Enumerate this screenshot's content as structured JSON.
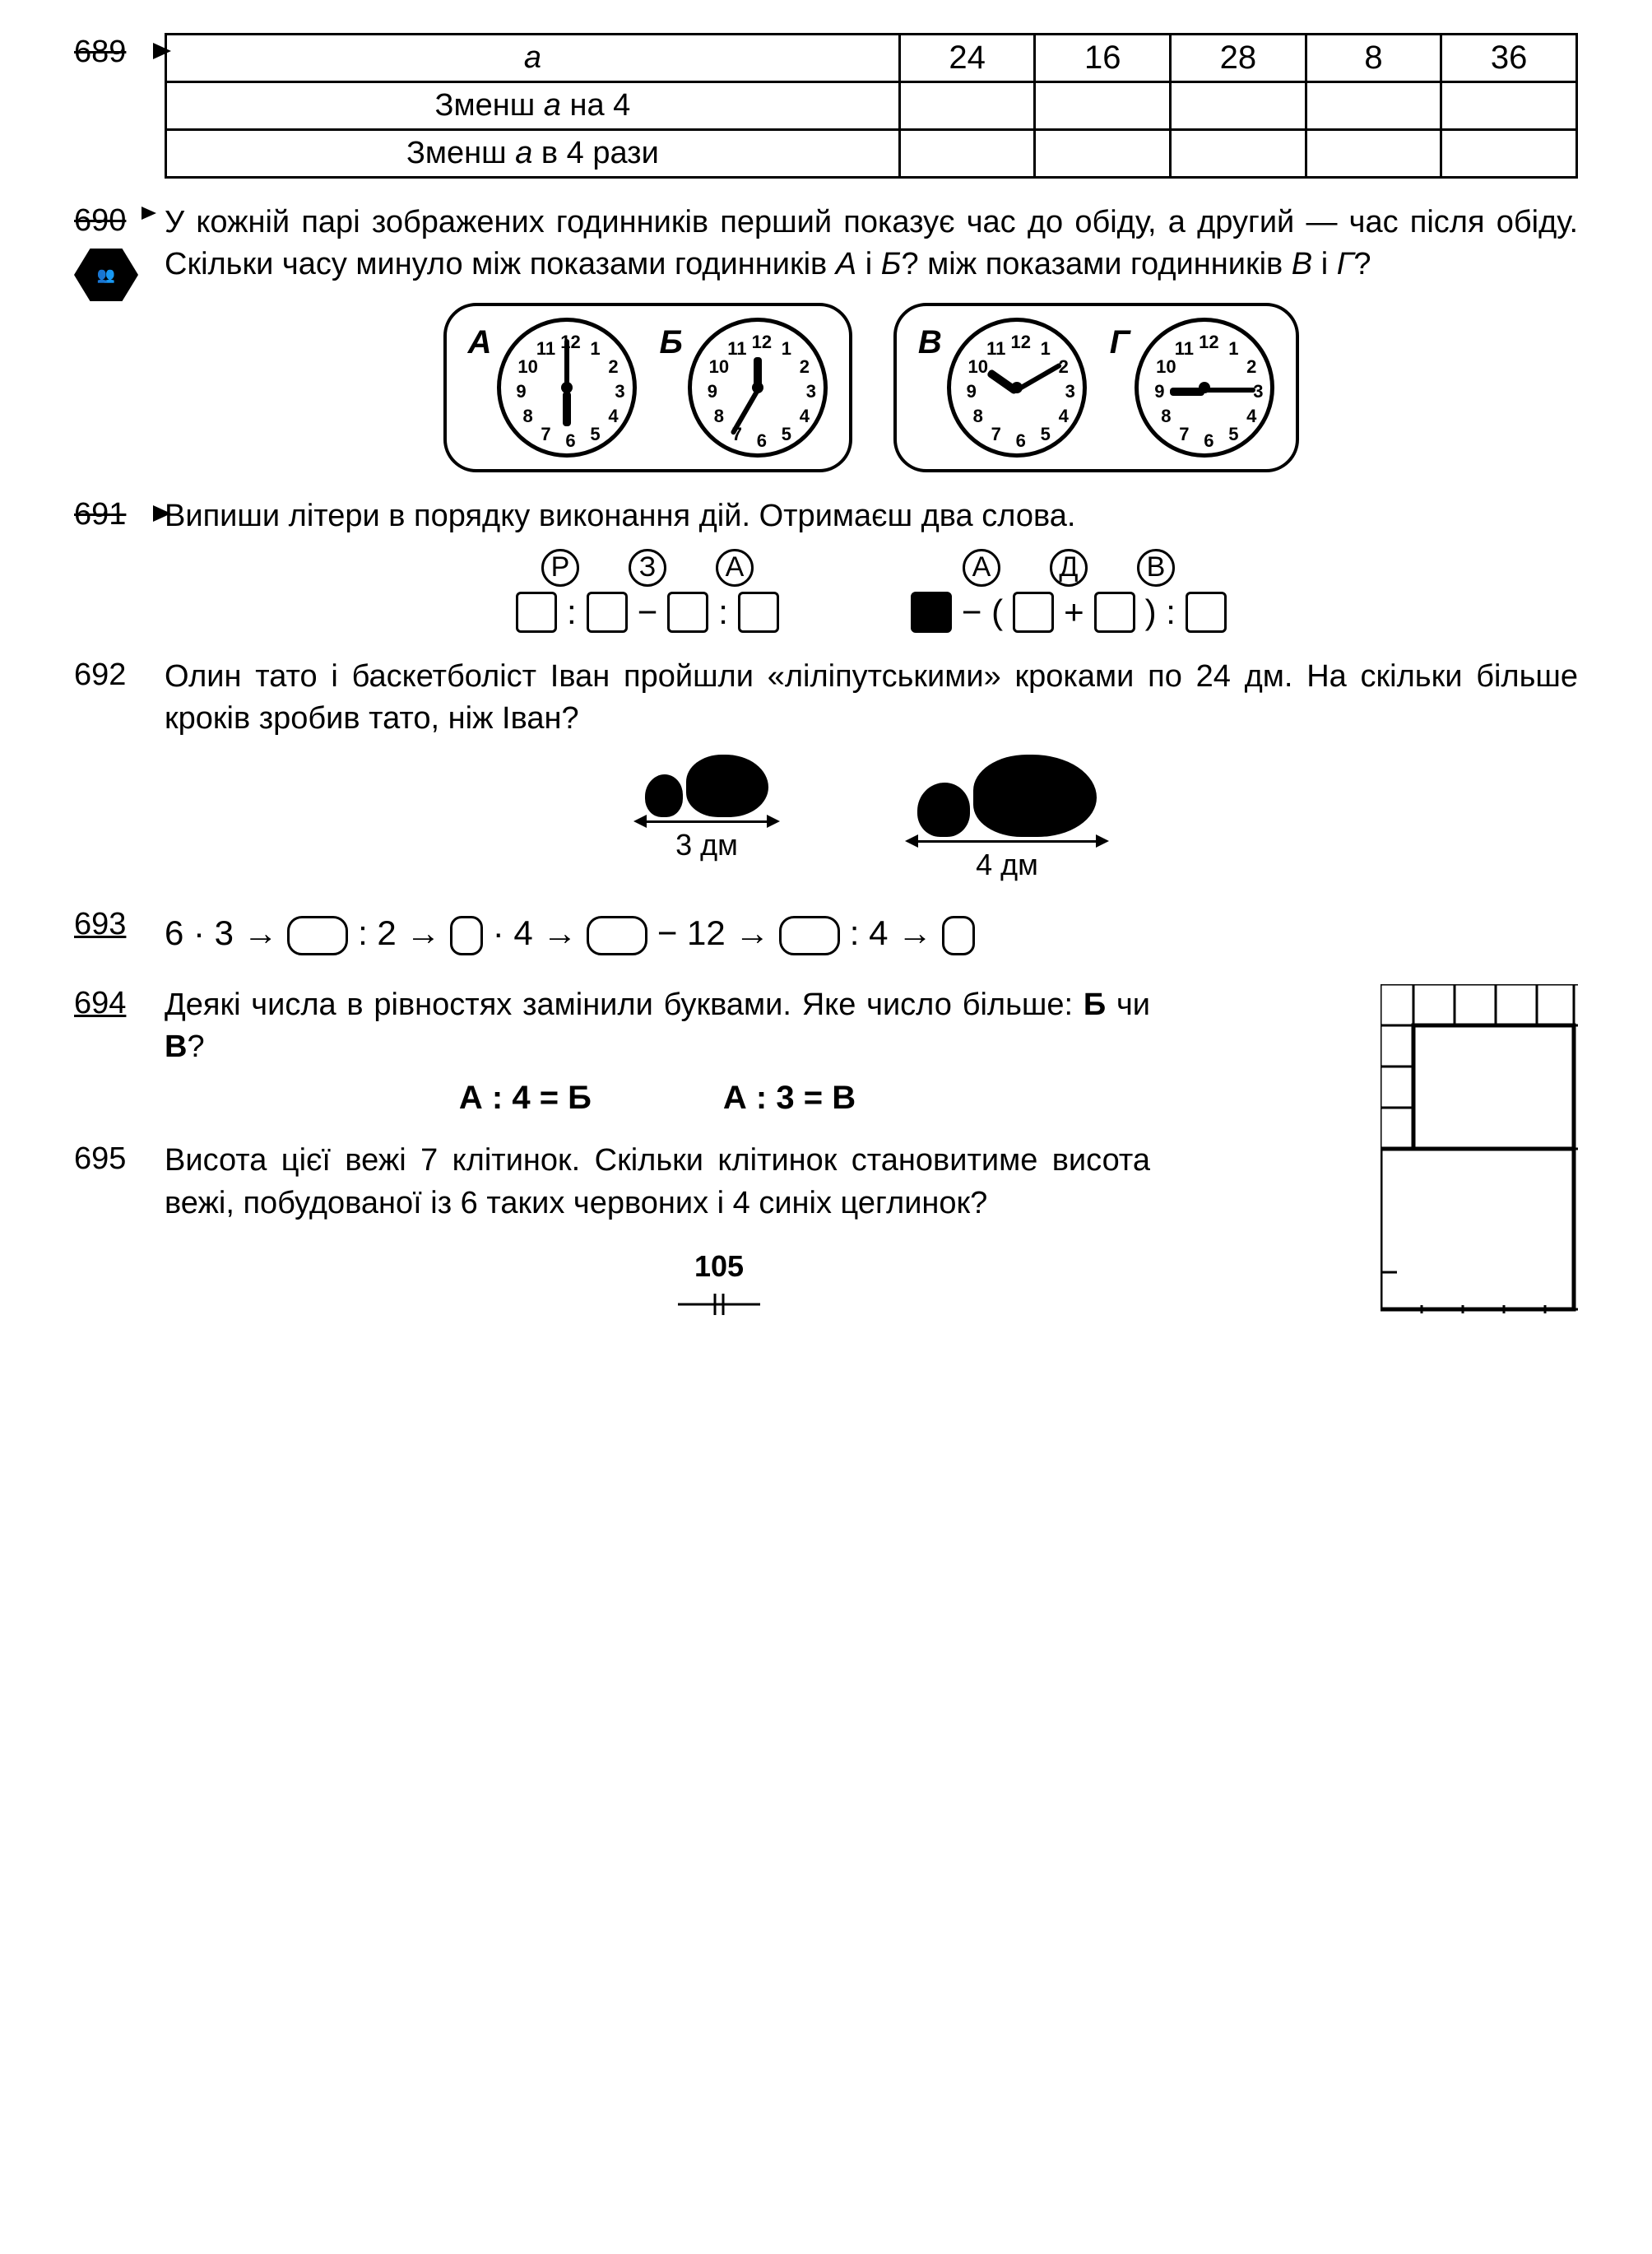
{
  "page_number": "105",
  "ex689": {
    "num": "689",
    "row_a": "a",
    "row_minus": "Зменш a на 4",
    "row_div": "Зменш a в 4 рази",
    "values": [
      "24",
      "16",
      "28",
      "8",
      "36"
    ]
  },
  "ex690": {
    "num": "690",
    "text": "У кожній парі зображених годинників перший показує час до обіду, а другий — час після обіду. Скільки часу минуло між показами годинників А і Б? між показами годинників В і Г?",
    "labels": {
      "A": "А",
      "B": "Б",
      "V": "В",
      "G": "Г"
    },
    "clocks": {
      "A": {
        "hour_deg": 90,
        "min_deg": -90
      },
      "B": {
        "hour_deg": -90,
        "min_deg": 120
      },
      "V": {
        "hour_deg": -145,
        "min_deg": -30
      },
      "G": {
        "hour_deg": 180,
        "min_deg": 0
      }
    }
  },
  "ex691": {
    "num": "691",
    "text": "Випиши літери в порядку виконання дій. Отримаєш два слова.",
    "left_letters": [
      "Р",
      "З",
      "А"
    ],
    "right_letters": [
      "А",
      "Д",
      "В"
    ]
  },
  "ex692": {
    "num": "692",
    "text": "Олин тато і баскетболіст Іван пройшли «ліліпутськими» кроками по 24 дм. На скільки більше кроків зробив тато, ніж Іван?",
    "dim1": "3 дм",
    "dim2": "4 дм"
  },
  "ex693": {
    "num": "693",
    "chain": {
      "p1": "6 · 3",
      "p2": ": 2",
      "p3": "· 4",
      "p4": "− 12",
      "p5": ": 4"
    }
  },
  "ex694": {
    "num": "694",
    "text_1": "Деякі числа в рівностях замінили буквами. Яке число більше: ",
    "b": "Б",
    "or": " чи ",
    "v": "В",
    "q": "?",
    "eq1_l": "А : 4 = Б",
    "eq2_l": "А : 3 = В"
  },
  "ex695": {
    "num": "695",
    "text": "Висота цієї вежі 7 клітинок. Скільки клітинок становитиме висота вежі, побудованої із 6 таких червоних і 4 синіх цеглинок?"
  },
  "clock_numbers": [
    "12",
    "1",
    "2",
    "3",
    "4",
    "5",
    "6",
    "7",
    "8",
    "9",
    "10",
    "11"
  ]
}
